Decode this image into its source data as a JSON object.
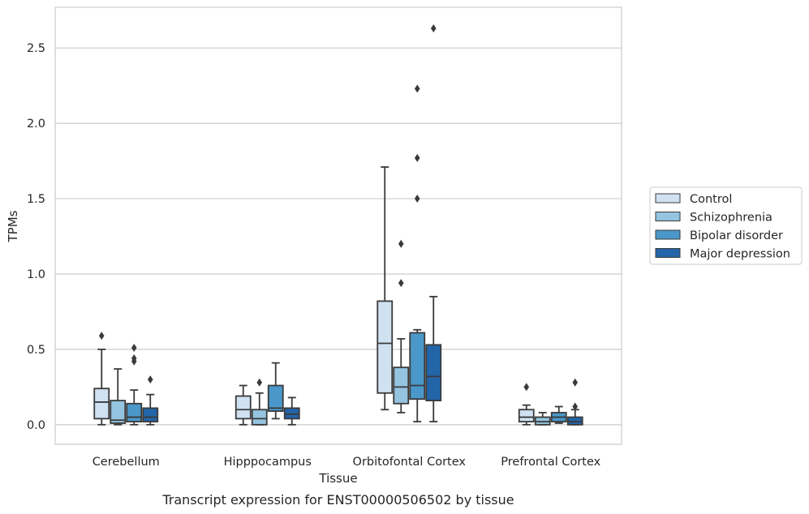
{
  "chart_data": {
    "type": "box",
    "title": "Transcript expression for ENST00000506502 by tissue",
    "xlabel": "Tissue",
    "ylabel": "TPMs",
    "ylim": [
      -0.13,
      2.77
    ],
    "yticks": [
      0.0,
      0.5,
      1.0,
      1.5,
      2.0,
      2.5
    ],
    "ytick_labels": [
      "0.0",
      "0.5",
      "1.0",
      "1.5",
      "2.0",
      "2.5"
    ],
    "grid": "horizontal",
    "legend_position": "right",
    "categories": [
      "Cerebellum",
      "Hipppocampus",
      "Orbitofontal Cortex",
      "Prefrontal Cortex"
    ],
    "series": [
      {
        "name": "Control",
        "color": "#d0e1f2",
        "boxes": [
          {
            "whislo": 0.0,
            "q1": 0.04,
            "median": 0.15,
            "q3": 0.24,
            "whishi": 0.5,
            "fliers": [
              0.59
            ]
          },
          {
            "whislo": 0.0,
            "q1": 0.04,
            "median": 0.1,
            "q3": 0.19,
            "whishi": 0.26,
            "fliers": []
          },
          {
            "whislo": 0.1,
            "q1": 0.21,
            "median": 0.54,
            "q3": 0.82,
            "whishi": 1.71,
            "fliers": []
          },
          {
            "whislo": 0.0,
            "q1": 0.02,
            "median": 0.05,
            "q3": 0.1,
            "whishi": 0.13,
            "fliers": [
              0.25
            ]
          }
        ]
      },
      {
        "name": "Schizophrenia",
        "color": "#94c4df",
        "boxes": [
          {
            "whislo": 0.0,
            "q1": 0.01,
            "median": 0.03,
            "q3": 0.16,
            "whishi": 0.37,
            "fliers": []
          },
          {
            "whislo": 0.0,
            "q1": 0.0,
            "median": 0.04,
            "q3": 0.1,
            "whishi": 0.21,
            "fliers": [
              0.28
            ]
          },
          {
            "whislo": 0.08,
            "q1": 0.14,
            "median": 0.25,
            "q3": 0.38,
            "whishi": 0.57,
            "fliers": [
              0.94,
              1.2
            ]
          },
          {
            "whislo": 0.0,
            "q1": 0.0,
            "median": 0.02,
            "q3": 0.05,
            "whishi": 0.08,
            "fliers": []
          }
        ]
      },
      {
        "name": "Bipolar disorder",
        "color": "#4a98c9",
        "boxes": [
          {
            "whislo": 0.0,
            "q1": 0.02,
            "median": 0.05,
            "q3": 0.14,
            "whishi": 0.23,
            "fliers": [
              0.42,
              0.44,
              0.51
            ]
          },
          {
            "whislo": 0.04,
            "q1": 0.09,
            "median": 0.11,
            "q3": 0.26,
            "whishi": 0.41,
            "fliers": []
          },
          {
            "whislo": 0.02,
            "q1": 0.17,
            "median": 0.26,
            "q3": 0.61,
            "whishi": 0.63,
            "fliers": [
              1.5,
              1.77,
              2.23
            ]
          },
          {
            "whislo": 0.01,
            "q1": 0.02,
            "median": 0.05,
            "q3": 0.08,
            "whishi": 0.12,
            "fliers": []
          }
        ]
      },
      {
        "name": "Major depression",
        "color": "#2265a9",
        "boxes": [
          {
            "whislo": 0.0,
            "q1": 0.02,
            "median": 0.05,
            "q3": 0.11,
            "whishi": 0.2,
            "fliers": [
              0.3
            ]
          },
          {
            "whislo": 0.0,
            "q1": 0.04,
            "median": 0.07,
            "q3": 0.11,
            "whishi": 0.18,
            "fliers": []
          },
          {
            "whislo": 0.02,
            "q1": 0.16,
            "median": 0.32,
            "q3": 0.53,
            "whishi": 0.85,
            "fliers": [
              2.63
            ]
          },
          {
            "whislo": 0.0,
            "q1": 0.0,
            "median": 0.02,
            "q3": 0.05,
            "whishi": 0.1,
            "fliers": [
              0.12,
              0.28
            ]
          }
        ]
      }
    ]
  }
}
